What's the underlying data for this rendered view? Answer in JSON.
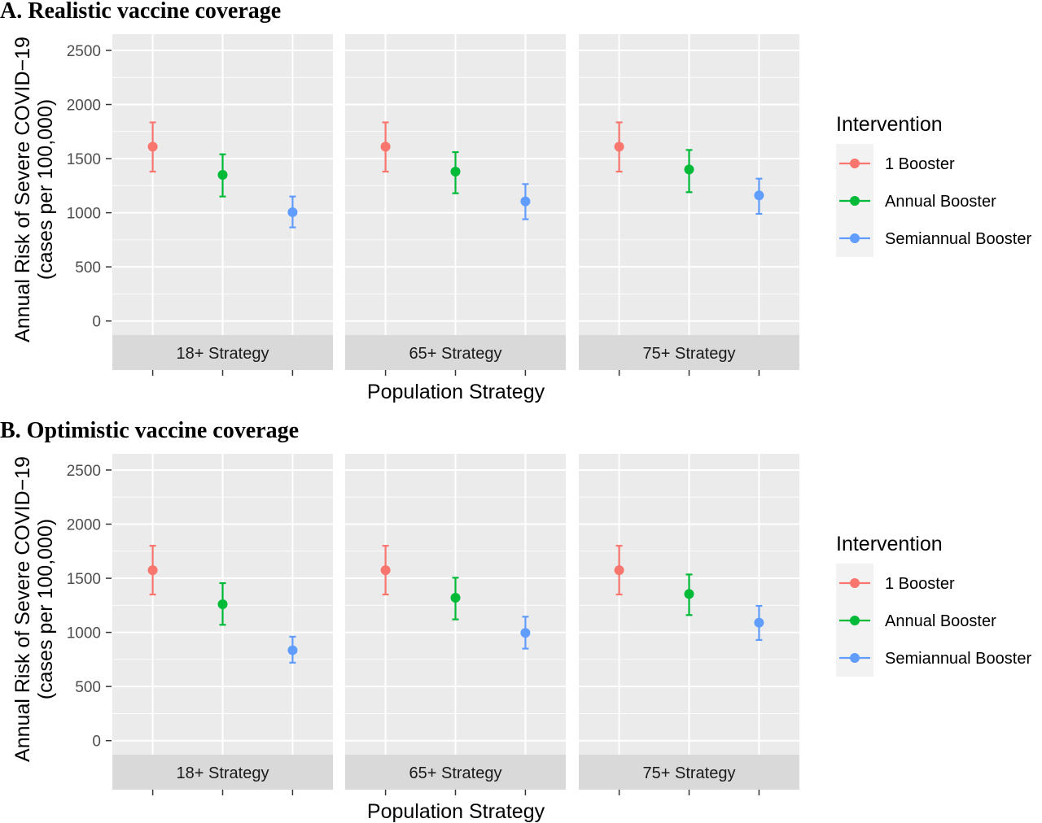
{
  "colors": {
    "panel_bg": "#ebebeb",
    "strip_bg": "#d9d9d9",
    "grid": "#ffffff",
    "1 Booster": "#F8766D",
    "Annual Booster": "#00BA38",
    "Semiannual Booster": "#619CFF"
  },
  "chart_data": [
    {
      "type": "scatter",
      "title": "A.  Realistic vaccine coverage",
      "xlabel": "Population Strategy",
      "ylabel": "Annual Risk of Severe COVID−19",
      "ylabel2": "(cases per 100,000)",
      "ylim": [
        -130,
        2650
      ],
      "yticks": [
        0,
        500,
        1000,
        1500,
        2000,
        2500
      ],
      "grid": true,
      "legend": {
        "title": "Intervention",
        "position": "right",
        "entries": [
          "1 Booster",
          "Annual Booster",
          "Semiannual Booster"
        ]
      },
      "facets": [
        {
          "label": "18+ Strategy",
          "points": [
            {
              "series": "1 Booster",
              "y": 1610,
              "low": 1380,
              "high": 1835
            },
            {
              "series": "Annual Booster",
              "y": 1350,
              "low": 1150,
              "high": 1540
            },
            {
              "series": "Semiannual Booster",
              "y": 1005,
              "low": 865,
              "high": 1150
            }
          ]
        },
        {
          "label": "65+ Strategy",
          "points": [
            {
              "series": "1 Booster",
              "y": 1610,
              "low": 1380,
              "high": 1835
            },
            {
              "series": "Annual Booster",
              "y": 1380,
              "low": 1180,
              "high": 1560
            },
            {
              "series": "Semiannual Booster",
              "y": 1105,
              "low": 940,
              "high": 1265
            }
          ]
        },
        {
          "label": "75+ Strategy",
          "points": [
            {
              "series": "1 Booster",
              "y": 1610,
              "low": 1380,
              "high": 1835
            },
            {
              "series": "Annual Booster",
              "y": 1400,
              "low": 1190,
              "high": 1580
            },
            {
              "series": "Semiannual Booster",
              "y": 1160,
              "low": 990,
              "high": 1315
            }
          ]
        }
      ]
    },
    {
      "type": "scatter",
      "title": "B.  Optimistic vaccine coverage",
      "xlabel": "Population Strategy",
      "ylabel": "Annual Risk of Severe COVID−19",
      "ylabel2": "(cases per 100,000)",
      "ylim": [
        -130,
        2650
      ],
      "yticks": [
        0,
        500,
        1000,
        1500,
        2000,
        2500
      ],
      "grid": true,
      "legend": {
        "title": "Intervention",
        "position": "right",
        "entries": [
          "1 Booster",
          "Annual Booster",
          "Semiannual Booster"
        ]
      },
      "facets": [
        {
          "label": "18+ Strategy",
          "points": [
            {
              "series": "1 Booster",
              "y": 1575,
              "low": 1350,
              "high": 1800
            },
            {
              "series": "Annual Booster",
              "y": 1260,
              "low": 1070,
              "high": 1455
            },
            {
              "series": "Semiannual Booster",
              "y": 835,
              "low": 720,
              "high": 960
            }
          ]
        },
        {
          "label": "65+ Strategy",
          "points": [
            {
              "series": "1 Booster",
              "y": 1575,
              "low": 1350,
              "high": 1800
            },
            {
              "series": "Annual Booster",
              "y": 1320,
              "low": 1120,
              "high": 1505
            },
            {
              "series": "Semiannual Booster",
              "y": 995,
              "low": 850,
              "high": 1145
            }
          ]
        },
        {
          "label": "75+ Strategy",
          "points": [
            {
              "series": "1 Booster",
              "y": 1575,
              "low": 1350,
              "high": 1800
            },
            {
              "series": "Annual Booster",
              "y": 1355,
              "low": 1160,
              "high": 1535
            },
            {
              "series": "Semiannual Booster",
              "y": 1090,
              "low": 930,
              "high": 1245
            }
          ]
        }
      ]
    }
  ]
}
